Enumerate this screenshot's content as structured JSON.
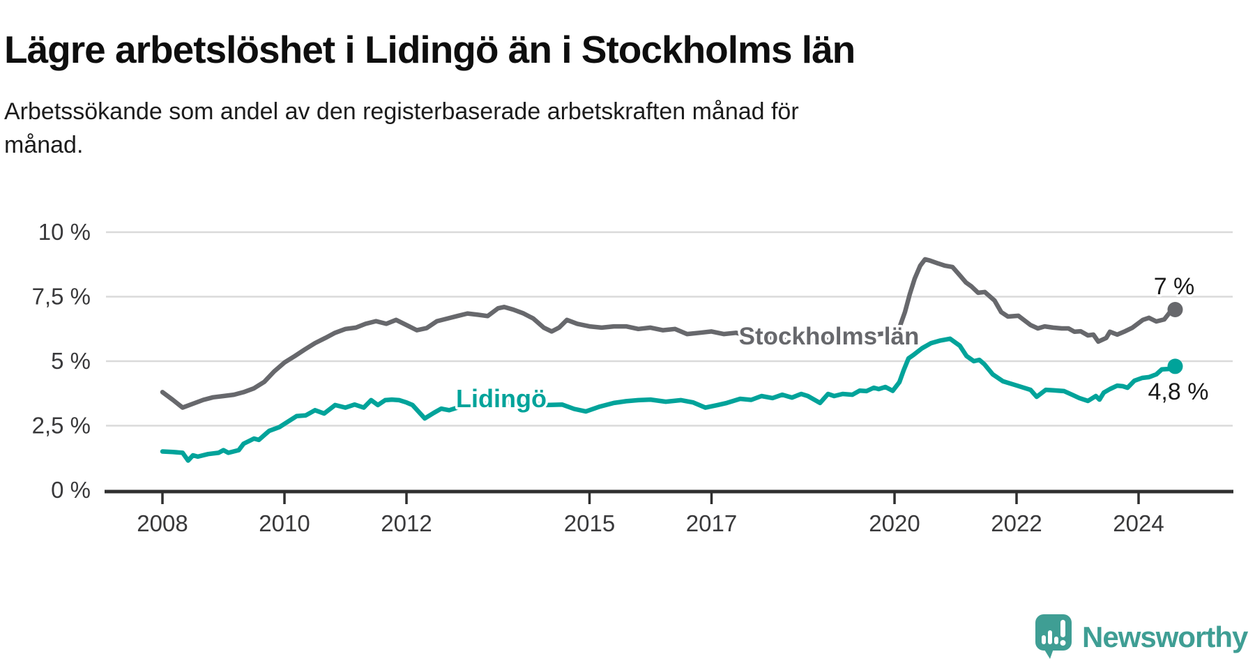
{
  "header": {
    "title": "Lägre arbetslöshet i Lidingö än i Stockholms län",
    "subtitle_lines": [
      "Arbetssökande som andel av den registerbaserade arbetskraften månad för",
      "månad."
    ]
  },
  "colors": {
    "stockholm_line": "#67686c",
    "lidingo_line": "#00a39a",
    "end_label_text": "#1a1a1a",
    "gridline": "#dadada",
    "axis": "#2f2f2f",
    "tick_text": "#39393b",
    "brand_teal": "#3f9e94"
  },
  "chart_data": {
    "type": "line",
    "title": "Lägre arbetslöshet i Lidingö än i Stockholms län",
    "xlabel": "",
    "ylabel": "Arbetssökande som andel av den registerbaserade arbetskraften",
    "x_domain": [
      2008.0,
      2024.6
    ],
    "y_domain": [
      0,
      10
    ],
    "grid": true,
    "legend_position": "inline-labels",
    "y_ticks": [
      {
        "label": "10 %",
        "value": 10
      },
      {
        "label": "7,5 %",
        "value": 7.5
      },
      {
        "label": "5 %",
        "value": 5
      },
      {
        "label": "2,5 %",
        "value": 2.5
      },
      {
        "label": "0 %",
        "value": 0
      }
    ],
    "x_ticks": [
      {
        "label": "2008",
        "value": 2008
      },
      {
        "label": "2010",
        "value": 2010
      },
      {
        "label": "2012",
        "value": 2012
      },
      {
        "label": "2015",
        "value": 2015
      },
      {
        "label": "2017",
        "value": 2017
      },
      {
        "label": "2020",
        "value": 2020
      },
      {
        "label": "2022",
        "value": 2022
      },
      {
        "label": "2024",
        "value": 2024
      }
    ],
    "series": [
      {
        "name": "Stockholms län",
        "inline_label": "Stockholms län",
        "color": "#67686c",
        "end_label": "7 %",
        "end_value": 7.0,
        "points": [
          [
            2008.0,
            3.8
          ],
          [
            2008.17,
            3.5
          ],
          [
            2008.33,
            3.2
          ],
          [
            2008.5,
            3.35
          ],
          [
            2008.67,
            3.5
          ],
          [
            2008.83,
            3.6
          ],
          [
            2009.0,
            3.65
          ],
          [
            2009.17,
            3.7
          ],
          [
            2009.33,
            3.8
          ],
          [
            2009.5,
            3.95
          ],
          [
            2009.67,
            4.2
          ],
          [
            2009.83,
            4.6
          ],
          [
            2010.0,
            4.95
          ],
          [
            2010.17,
            5.2
          ],
          [
            2010.33,
            5.45
          ],
          [
            2010.5,
            5.7
          ],
          [
            2010.67,
            5.9
          ],
          [
            2010.83,
            6.1
          ],
          [
            2011.0,
            6.25
          ],
          [
            2011.17,
            6.3
          ],
          [
            2011.33,
            6.45
          ],
          [
            2011.5,
            6.55
          ],
          [
            2011.67,
            6.45
          ],
          [
            2011.83,
            6.6
          ],
          [
            2012.0,
            6.4
          ],
          [
            2012.17,
            6.2
          ],
          [
            2012.33,
            6.28
          ],
          [
            2012.5,
            6.55
          ],
          [
            2012.67,
            6.65
          ],
          [
            2012.83,
            6.75
          ],
          [
            2013.0,
            6.85
          ],
          [
            2013.17,
            6.8
          ],
          [
            2013.33,
            6.75
          ],
          [
            2013.5,
            7.05
          ],
          [
            2013.6,
            7.1
          ],
          [
            2013.75,
            7.0
          ],
          [
            2013.92,
            6.85
          ],
          [
            2014.08,
            6.65
          ],
          [
            2014.25,
            6.3
          ],
          [
            2014.38,
            6.15
          ],
          [
            2014.5,
            6.3
          ],
          [
            2014.63,
            6.6
          ],
          [
            2014.8,
            6.45
          ],
          [
            2015.0,
            6.35
          ],
          [
            2015.2,
            6.3
          ],
          [
            2015.4,
            6.35
          ],
          [
            2015.6,
            6.35
          ],
          [
            2015.8,
            6.25
          ],
          [
            2016.0,
            6.3
          ],
          [
            2016.2,
            6.2
          ],
          [
            2016.4,
            6.25
          ],
          [
            2016.6,
            6.05
          ],
          [
            2016.8,
            6.1
          ],
          [
            2017.0,
            6.15
          ],
          [
            2017.2,
            6.05
          ],
          [
            2017.4,
            6.1
          ],
          [
            2017.6,
            6.0
          ],
          [
            2017.8,
            5.95
          ],
          [
            2018.0,
            5.9
          ],
          [
            2018.25,
            5.8
          ],
          [
            2018.5,
            5.78
          ],
          [
            2018.75,
            5.8
          ],
          [
            2019.0,
            5.85
          ],
          [
            2019.25,
            5.88
          ],
          [
            2019.5,
            5.95
          ],
          [
            2019.75,
            6.05
          ],
          [
            2019.92,
            6.1
          ],
          [
            2020.08,
            6.3
          ],
          [
            2020.17,
            6.9
          ],
          [
            2020.25,
            7.6
          ],
          [
            2020.33,
            8.2
          ],
          [
            2020.42,
            8.7
          ],
          [
            2020.5,
            8.95
          ],
          [
            2020.58,
            8.9
          ],
          [
            2020.7,
            8.8
          ],
          [
            2020.83,
            8.7
          ],
          [
            2020.95,
            8.65
          ],
          [
            2021.08,
            8.3
          ],
          [
            2021.17,
            8.05
          ],
          [
            2021.26,
            7.9
          ],
          [
            2021.37,
            7.65
          ],
          [
            2021.48,
            7.68
          ],
          [
            2021.64,
            7.35
          ],
          [
            2021.75,
            6.9
          ],
          [
            2021.86,
            6.73
          ],
          [
            2022.03,
            6.76
          ],
          [
            2022.23,
            6.4
          ],
          [
            2022.35,
            6.27
          ],
          [
            2022.46,
            6.35
          ],
          [
            2022.6,
            6.3
          ],
          [
            2022.74,
            6.27
          ],
          [
            2022.85,
            6.27
          ],
          [
            2022.95,
            6.14
          ],
          [
            2023.05,
            6.16
          ],
          [
            2023.17,
            6.0
          ],
          [
            2023.26,
            6.03
          ],
          [
            2023.34,
            5.76
          ],
          [
            2023.47,
            5.9
          ],
          [
            2023.53,
            6.14
          ],
          [
            2023.65,
            6.03
          ],
          [
            2023.78,
            6.16
          ],
          [
            2023.9,
            6.3
          ],
          [
            2024.07,
            6.6
          ],
          [
            2024.17,
            6.68
          ],
          [
            2024.29,
            6.54
          ],
          [
            2024.42,
            6.62
          ],
          [
            2024.5,
            6.86
          ],
          [
            2024.6,
            7.0
          ]
        ]
      },
      {
        "name": "Lidingö",
        "inline_label": "Lidingö",
        "color": "#00a39a",
        "end_label": "4,8 %",
        "end_value": 4.8,
        "points": [
          [
            2008.0,
            1.5
          ],
          [
            2008.17,
            1.48
          ],
          [
            2008.33,
            1.45
          ],
          [
            2008.42,
            1.15
          ],
          [
            2008.5,
            1.35
          ],
          [
            2008.58,
            1.3
          ],
          [
            2008.75,
            1.4
          ],
          [
            2008.92,
            1.45
          ],
          [
            2009.0,
            1.55
          ],
          [
            2009.08,
            1.45
          ],
          [
            2009.25,
            1.55
          ],
          [
            2009.33,
            1.8
          ],
          [
            2009.5,
            2.0
          ],
          [
            2009.58,
            1.95
          ],
          [
            2009.75,
            2.3
          ],
          [
            2009.92,
            2.45
          ],
          [
            2010.0,
            2.57
          ],
          [
            2010.2,
            2.87
          ],
          [
            2010.35,
            2.9
          ],
          [
            2010.5,
            3.1
          ],
          [
            2010.65,
            2.97
          ],
          [
            2010.83,
            3.3
          ],
          [
            2011.0,
            3.2
          ],
          [
            2011.15,
            3.32
          ],
          [
            2011.3,
            3.2
          ],
          [
            2011.42,
            3.49
          ],
          [
            2011.53,
            3.3
          ],
          [
            2011.65,
            3.49
          ],
          [
            2011.76,
            3.51
          ],
          [
            2011.88,
            3.49
          ],
          [
            2012.0,
            3.4
          ],
          [
            2012.1,
            3.3
          ],
          [
            2012.3,
            2.78
          ],
          [
            2012.45,
            3.0
          ],
          [
            2012.57,
            3.16
          ],
          [
            2012.7,
            3.1
          ],
          [
            2012.9,
            3.25
          ],
          [
            2013.1,
            3.3
          ],
          [
            2013.3,
            3.35
          ],
          [
            2013.5,
            3.45
          ],
          [
            2013.7,
            3.4
          ],
          [
            2013.9,
            3.35
          ],
          [
            2014.1,
            3.35
          ],
          [
            2014.3,
            3.3
          ],
          [
            2014.55,
            3.32
          ],
          [
            2014.75,
            3.15
          ],
          [
            2014.94,
            3.05
          ],
          [
            2015.17,
            3.24
          ],
          [
            2015.4,
            3.38
          ],
          [
            2015.6,
            3.45
          ],
          [
            2015.8,
            3.49
          ],
          [
            2016.0,
            3.51
          ],
          [
            2016.25,
            3.43
          ],
          [
            2016.5,
            3.49
          ],
          [
            2016.7,
            3.4
          ],
          [
            2016.9,
            3.2
          ],
          [
            2017.1,
            3.3
          ],
          [
            2017.25,
            3.38
          ],
          [
            2017.47,
            3.54
          ],
          [
            2017.65,
            3.5
          ],
          [
            2017.82,
            3.65
          ],
          [
            2018.0,
            3.57
          ],
          [
            2018.16,
            3.7
          ],
          [
            2018.32,
            3.59
          ],
          [
            2018.47,
            3.73
          ],
          [
            2018.58,
            3.65
          ],
          [
            2018.78,
            3.38
          ],
          [
            2018.91,
            3.73
          ],
          [
            2019.01,
            3.65
          ],
          [
            2019.15,
            3.73
          ],
          [
            2019.31,
            3.7
          ],
          [
            2019.43,
            3.86
          ],
          [
            2019.54,
            3.84
          ],
          [
            2019.66,
            3.97
          ],
          [
            2019.74,
            3.92
          ],
          [
            2019.85,
            4.0
          ],
          [
            2019.97,
            3.85
          ],
          [
            2020.08,
            4.19
          ],
          [
            2020.15,
            4.65
          ],
          [
            2020.23,
            5.11
          ],
          [
            2020.31,
            5.24
          ],
          [
            2020.45,
            5.5
          ],
          [
            2020.6,
            5.7
          ],
          [
            2020.75,
            5.8
          ],
          [
            2020.91,
            5.87
          ],
          [
            2021.07,
            5.6
          ],
          [
            2021.18,
            5.2
          ],
          [
            2021.3,
            5.0
          ],
          [
            2021.39,
            5.05
          ],
          [
            2021.47,
            4.89
          ],
          [
            2021.61,
            4.49
          ],
          [
            2021.78,
            4.22
          ],
          [
            2022.0,
            4.06
          ],
          [
            2022.23,
            3.89
          ],
          [
            2022.33,
            3.62
          ],
          [
            2022.48,
            3.89
          ],
          [
            2022.6,
            3.87
          ],
          [
            2022.78,
            3.84
          ],
          [
            2022.91,
            3.7
          ],
          [
            2023.03,
            3.57
          ],
          [
            2023.17,
            3.46
          ],
          [
            2023.3,
            3.65
          ],
          [
            2023.36,
            3.51
          ],
          [
            2023.43,
            3.78
          ],
          [
            2023.53,
            3.92
          ],
          [
            2023.65,
            4.05
          ],
          [
            2023.74,
            4.03
          ],
          [
            2023.82,
            3.97
          ],
          [
            2023.93,
            4.24
          ],
          [
            2024.06,
            4.35
          ],
          [
            2024.17,
            4.38
          ],
          [
            2024.29,
            4.49
          ],
          [
            2024.38,
            4.68
          ],
          [
            2024.5,
            4.7
          ],
          [
            2024.6,
            4.8
          ]
        ]
      }
    ]
  },
  "footer": {
    "brand": "Newsworthy"
  }
}
